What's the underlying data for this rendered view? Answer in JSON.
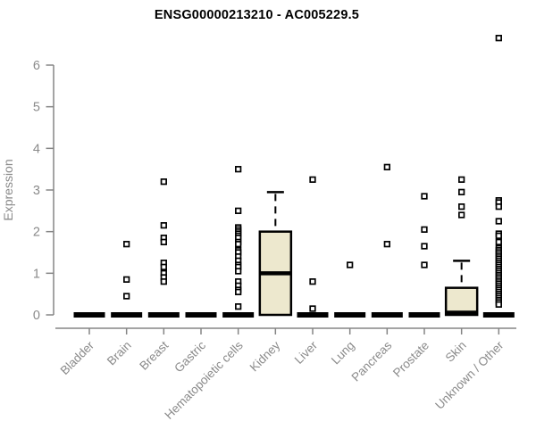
{
  "chart_data": {
    "type": "boxplot",
    "title": "ENSG00000213210 - AC005229.5",
    "ylabel": "Expression",
    "xlabel": "",
    "ylim": [
      0,
      6.8
    ],
    "yticks": [
      0,
      1,
      2,
      3,
      4,
      5,
      6
    ],
    "grid": false,
    "legend": "none",
    "categories": [
      "Bladder",
      "Brain",
      "Breast",
      "Gastric",
      "Hematopoietic cells",
      "Kidney",
      "Liver",
      "Lung",
      "Pancreas",
      "Prostate",
      "Skin",
      "Unknown / Other"
    ],
    "series": [
      {
        "category": "Bladder",
        "q1": 0,
        "median": 0,
        "q3": 0,
        "whisker_low": 0,
        "whisker_high": 0,
        "outliers": []
      },
      {
        "category": "Brain",
        "q1": 0,
        "median": 0,
        "q3": 0,
        "whisker_low": 0,
        "whisker_high": 0,
        "outliers": [
          1.7,
          0.85,
          0.45
        ]
      },
      {
        "category": "Breast",
        "q1": 0,
        "median": 0,
        "q3": 0,
        "whisker_low": 0,
        "whisker_high": 0,
        "outliers": [
          3.2,
          2.15,
          1.85,
          1.75,
          1.25,
          1.15,
          1.0,
          0.9,
          0.8
        ]
      },
      {
        "category": "Gastric",
        "q1": 0,
        "median": 0,
        "q3": 0,
        "whisker_low": 0,
        "whisker_high": 0,
        "outliers": []
      },
      {
        "category": "Hematopoietic cells",
        "q1": 0,
        "median": 0,
        "q3": 0,
        "whisker_low": 0,
        "whisker_high": 0,
        "outliers": [
          3.5,
          2.5,
          2.1,
          2.05,
          2.0,
          1.95,
          1.9,
          1.85,
          1.75,
          1.7,
          1.55,
          1.5,
          1.4,
          1.3,
          1.2,
          1.15,
          1.05,
          0.8,
          0.7,
          0.6,
          0.55,
          0.2
        ]
      },
      {
        "category": "Kidney",
        "q1": 0,
        "median": 1.0,
        "q3": 2.0,
        "whisker_low": 0,
        "whisker_high": 2.95,
        "outliers": []
      },
      {
        "category": "Liver",
        "q1": 0,
        "median": 0,
        "q3": 0,
        "whisker_low": 0,
        "whisker_high": 0,
        "outliers": [
          3.25,
          0.8,
          0.15
        ]
      },
      {
        "category": "Lung",
        "q1": 0,
        "median": 0,
        "q3": 0,
        "whisker_low": 0,
        "whisker_high": 0,
        "outliers": [
          1.2
        ]
      },
      {
        "category": "Pancreas",
        "q1": 0,
        "median": 0,
        "q3": 0,
        "whisker_low": 0,
        "whisker_high": 0,
        "outliers": [
          3.55,
          1.7
        ]
      },
      {
        "category": "Prostate",
        "q1": 0,
        "median": 0,
        "q3": 0,
        "whisker_low": 0,
        "whisker_high": 0,
        "outliers": [
          2.85,
          2.05,
          1.65,
          1.2
        ]
      },
      {
        "category": "Skin",
        "q1": 0,
        "median": 0,
        "q3": 0.65,
        "whisker_low": 0,
        "whisker_high": 1.3,
        "outliers": [
          3.25,
          2.95,
          2.6,
          2.4
        ]
      },
      {
        "category": "Unknown / Other",
        "q1": 0,
        "median": 0,
        "q3": 0,
        "whisker_low": 0,
        "whisker_high": 0,
        "outliers": [
          6.65,
          2.75,
          2.7,
          2.6,
          2.25,
          1.95,
          1.9,
          1.75,
          1.6,
          1.55,
          1.5,
          1.45,
          1.4,
          1.35,
          1.3,
          1.25,
          1.2,
          1.15,
          1.1,
          1.05,
          1.0,
          0.95,
          0.9,
          0.85,
          0.8,
          0.75,
          0.7,
          0.65,
          0.6,
          0.55,
          0.5,
          0.45,
          0.4,
          0.35,
          0.3,
          0.25
        ]
      }
    ],
    "colors": {
      "background": "#ffffff",
      "box_fill": "#EDE8CE",
      "box_stroke": "#000000",
      "outlier_stroke": "#000000",
      "outlier_fill": "#ffffff",
      "axis": "#858585",
      "tick_label": "#8a8a8a",
      "title": "#000000"
    }
  }
}
